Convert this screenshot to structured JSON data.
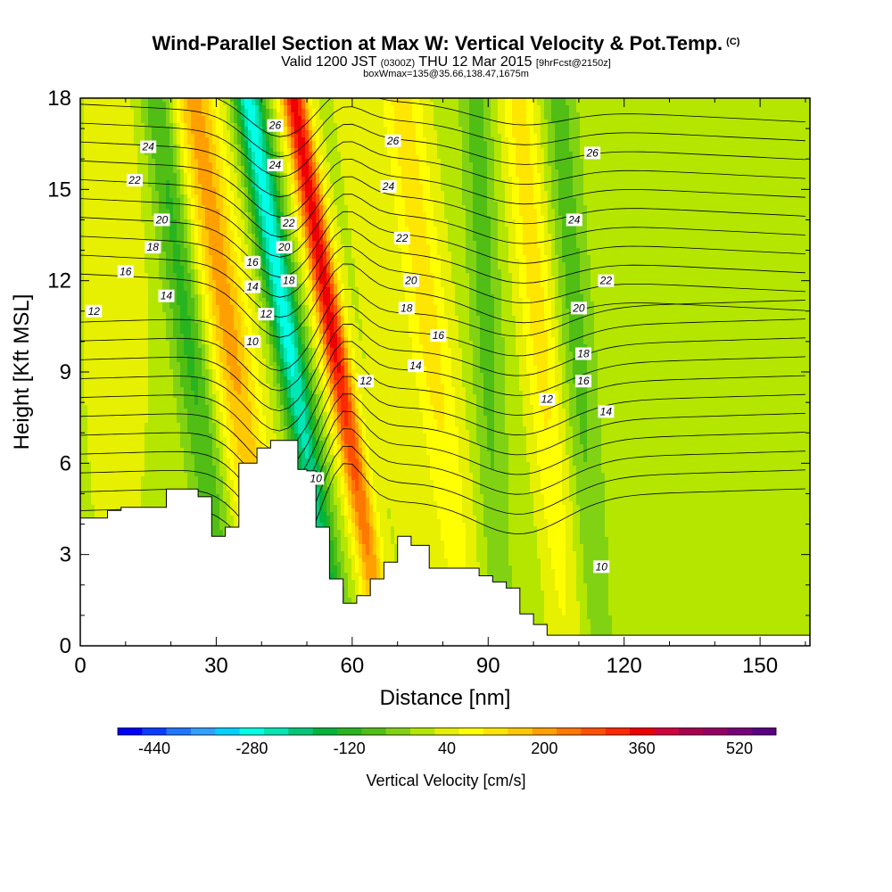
{
  "header": {
    "title": "Wind-Parallel Section at Max W: Vertical Velocity & Pot.Temp.",
    "copyright": "(C)",
    "valid_prefix": "Valid 1200 JST",
    "valid_utc": "(0300Z)",
    "valid_date": "THU 12 Mar 2015",
    "forecast": "[9hrFcst@2150z]",
    "box_info": "boxWmax=135@35.66,138.47,1675m"
  },
  "chart_data": {
    "type": "heatmap",
    "title": "Wind-Parallel Section at Max W: Vertical Velocity & Pot.Temp.",
    "xlabel": "Distance [nm]",
    "ylabel": "Height [Kft MSL]",
    "xlim": [
      0,
      161
    ],
    "ylim": [
      0,
      18
    ],
    "x_ticks": [
      "0",
      "30",
      "60",
      "90",
      "120",
      "150"
    ],
    "y_ticks": [
      "0",
      "3",
      "6",
      "9",
      "12",
      "15",
      "18"
    ],
    "colorbar": {
      "label": "Vertical Velocity [cm/s]",
      "ticks": [
        "-440",
        "-280",
        "-120",
        "40",
        "200",
        "360",
        "520"
      ],
      "levels_min": -480,
      "levels_step": 40,
      "colors": [
        "#0000ff",
        "#0a3cff",
        "#1e78ff",
        "#32a0ff",
        "#00d2ff",
        "#00ffe6",
        "#00e6b4",
        "#00c878",
        "#00b43c",
        "#28b41e",
        "#50be14",
        "#82d214",
        "#b4e600",
        "#e6f000",
        "#ffff00",
        "#ffe600",
        "#ffc800",
        "#ffa000",
        "#ff7800",
        "#ff5000",
        "#ff2800",
        "#f00000",
        "#d2003c",
        "#aa0050",
        "#960064",
        "#780078",
        "#5a0082"
      ]
    },
    "series": [
      {
        "name": "Vertical Velocity",
        "description_kind": "filled contour",
        "bands": [
          {
            "x_center": 8,
            "value": 40
          },
          {
            "x_center": 25,
            "value": -120
          },
          {
            "x_center": 34,
            "value": 200
          },
          {
            "x_center": 47,
            "value": -280
          },
          {
            "x_center": 57,
            "value": 360
          },
          {
            "x_center": 67,
            "value": 40
          },
          {
            "x_center": 78,
            "value": 120
          },
          {
            "x_center": 90,
            "value": -80
          },
          {
            "x_center": 102,
            "value": 120
          },
          {
            "x_center": 110,
            "value": -80
          },
          {
            "x_center": 140,
            "value": 0
          }
        ]
      },
      {
        "name": "Potential Temperature",
        "description_kind": "line contour",
        "contour_labels": [
          {
            "text": "24",
            "x": 15,
            "y": 16.4
          },
          {
            "text": "22",
            "x": 12,
            "y": 15.3
          },
          {
            "text": "20",
            "x": 18,
            "y": 14.0
          },
          {
            "text": "18",
            "x": 16,
            "y": 13.1
          },
          {
            "text": "16",
            "x": 10,
            "y": 12.3
          },
          {
            "text": "14",
            "x": 19,
            "y": 11.5
          },
          {
            "text": "12",
            "x": 3,
            "y": 11.0
          },
          {
            "text": "16",
            "x": 38,
            "y": 12.6
          },
          {
            "text": "14",
            "x": 38,
            "y": 11.8
          },
          {
            "text": "12",
            "x": 41,
            "y": 10.9
          },
          {
            "text": "10",
            "x": 38,
            "y": 10.0
          },
          {
            "text": "26",
            "x": 43,
            "y": 17.1
          },
          {
            "text": "24",
            "x": 43,
            "y": 15.8
          },
          {
            "text": "22",
            "x": 46,
            "y": 13.9
          },
          {
            "text": "20",
            "x": 45,
            "y": 13.1
          },
          {
            "text": "18",
            "x": 46,
            "y": 12.0
          },
          {
            "text": "10",
            "x": 52,
            "y": 5.5
          },
          {
            "text": "26",
            "x": 69,
            "y": 16.6
          },
          {
            "text": "24",
            "x": 68,
            "y": 15.1
          },
          {
            "text": "22",
            "x": 71,
            "y": 13.4
          },
          {
            "text": "20",
            "x": 73,
            "y": 12.0
          },
          {
            "text": "18",
            "x": 72,
            "y": 11.1
          },
          {
            "text": "16",
            "x": 79,
            "y": 10.2
          },
          {
            "text": "14",
            "x": 74,
            "y": 9.2
          },
          {
            "text": "12",
            "x": 63,
            "y": 8.7
          },
          {
            "text": "26",
            "x": 113,
            "y": 16.2
          },
          {
            "text": "24",
            "x": 109,
            "y": 14.0
          },
          {
            "text": "22",
            "x": 116,
            "y": 12.0
          },
          {
            "text": "20",
            "x": 110,
            "y": 11.1
          },
          {
            "text": "18",
            "x": 111,
            "y": 9.6
          },
          {
            "text": "16",
            "x": 111,
            "y": 8.7
          },
          {
            "text": "14",
            "x": 116,
            "y": 7.7
          },
          {
            "text": "12",
            "x": 103,
            "y": 8.1
          },
          {
            "text": "10",
            "x": 115,
            "y": 2.6
          }
        ]
      }
    ],
    "terrain": [
      [
        0,
        4.2
      ],
      [
        6,
        4.2
      ],
      [
        6,
        4.45
      ],
      [
        9,
        4.45
      ],
      [
        9,
        4.55
      ],
      [
        19,
        4.55
      ],
      [
        19,
        5.15
      ],
      [
        26,
        5.15
      ],
      [
        26,
        4.9
      ],
      [
        29,
        4.9
      ],
      [
        29,
        3.6
      ],
      [
        32,
        3.6
      ],
      [
        32,
        3.9
      ],
      [
        35,
        3.9
      ],
      [
        35,
        6.0
      ],
      [
        39,
        6.0
      ],
      [
        39,
        6.5
      ],
      [
        42,
        6.5
      ],
      [
        42,
        6.75
      ],
      [
        48,
        6.75
      ],
      [
        48,
        5.8
      ],
      [
        50,
        5.8
      ],
      [
        50,
        5.75
      ],
      [
        52,
        5.75
      ],
      [
        52,
        3.9
      ],
      [
        55,
        3.9
      ],
      [
        55,
        2.2
      ],
      [
        58,
        2.2
      ],
      [
        58,
        1.4
      ],
      [
        61,
        1.4
      ],
      [
        61,
        1.65
      ],
      [
        64,
        1.65
      ],
      [
        64,
        2.2
      ],
      [
        67,
        2.2
      ],
      [
        67,
        2.75
      ],
      [
        70,
        2.75
      ],
      [
        70,
        3.6
      ],
      [
        73,
        3.6
      ],
      [
        73,
        3.3
      ],
      [
        77,
        3.3
      ],
      [
        77,
        2.55
      ],
      [
        88,
        2.55
      ],
      [
        88,
        2.3
      ],
      [
        91,
        2.3
      ],
      [
        91,
        2.1
      ],
      [
        94,
        2.1
      ],
      [
        94,
        1.9
      ],
      [
        97,
        1.9
      ],
      [
        97,
        1.05
      ],
      [
        100,
        1.05
      ],
      [
        100,
        0.7
      ],
      [
        103,
        0.7
      ],
      [
        103,
        0.35
      ],
      [
        161,
        0.35
      ],
      [
        161,
        0
      ]
    ],
    "grid": false,
    "legend_placement": "bottom colorbar"
  }
}
